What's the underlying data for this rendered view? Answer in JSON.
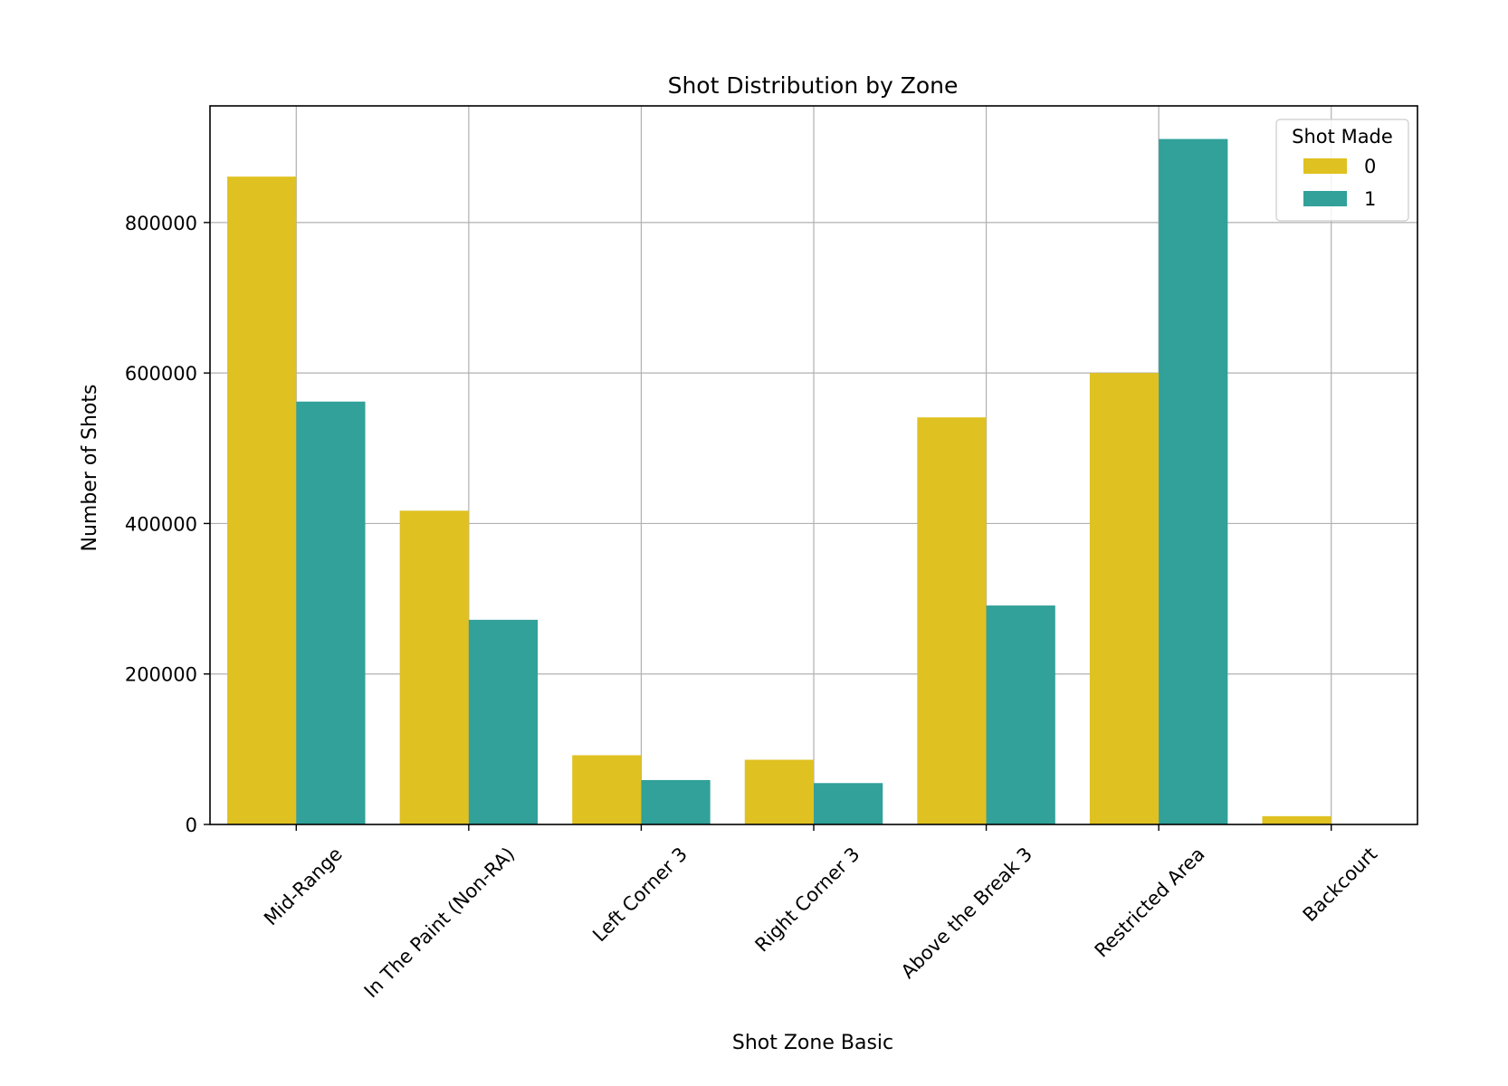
{
  "chart_data": {
    "type": "bar",
    "title": "Shot Distribution by Zone",
    "xlabel": "Shot Zone Basic",
    "ylabel": "Number of Shots",
    "categories": [
      "Mid-Range",
      "In The Paint (Non-RA)",
      "Left Corner 3",
      "Right Corner 3",
      "Above the Break 3",
      "Restricted Area",
      "Backcourt"
    ],
    "series": [
      {
        "name": "0",
        "color": "#DFC121",
        "values": [
          861000,
          417000,
          92000,
          86000,
          541000,
          600000,
          11000
        ]
      },
      {
        "name": "1",
        "color": "#31A19A",
        "values": [
          562000,
          272000,
          59000,
          55000,
          291000,
          911000,
          0
        ]
      }
    ],
    "ylim": [
      0,
      955000
    ],
    "yticks": [
      0,
      200000,
      400000,
      600000,
      800000
    ],
    "ytick_labels": [
      "0",
      "200000",
      "400000",
      "600000",
      "800000"
    ],
    "legend": {
      "title": "Shot Made",
      "placement": "top-right"
    },
    "grid": true
  }
}
